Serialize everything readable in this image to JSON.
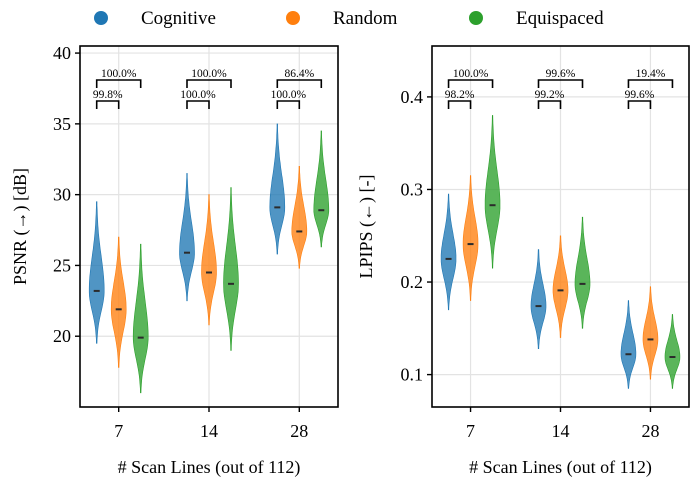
{
  "legend": [
    {
      "name": "Cognitive",
      "color": "#1f77b4"
    },
    {
      "name": "Random",
      "color": "#ff7f0e"
    },
    {
      "name": "Equispaced",
      "color": "#2ca02c"
    }
  ],
  "chart_data": [
    {
      "type": "violin",
      "xlabel": "# Scan Lines (out of 112)",
      "ylabel": "PSNR (→) [dB]",
      "ylim": [
        15,
        40.5
      ],
      "yticks": [
        20,
        25,
        30,
        35,
        40
      ],
      "grid": true,
      "categories": [
        "7",
        "14",
        "28"
      ],
      "series": [
        {
          "name": "Cognitive",
          "medians": [
            23.2,
            25.9,
            29.1
          ],
          "ranges": [
            [
              19.5,
              29.5
            ],
            [
              22.5,
              31.5
            ],
            [
              25.8,
              35.0
            ]
          ]
        },
        {
          "name": "Random",
          "medians": [
            21.9,
            24.5,
            27.4
          ],
          "ranges": [
            [
              17.8,
              27.0
            ],
            [
              20.8,
              30.0
            ],
            [
              24.8,
              32.0
            ]
          ]
        },
        {
          "name": "Equispaced",
          "medians": [
            19.9,
            23.7,
            28.9
          ],
          "ranges": [
            [
              16.0,
              26.5
            ],
            [
              19.0,
              30.5
            ],
            [
              26.3,
              34.5
            ]
          ]
        }
      ],
      "annotations": [
        {
          "category": "7",
          "pair": "Cognitive-Random",
          "text": "99.8%"
        },
        {
          "category": "7",
          "pair": "Cognitive-Equispaced",
          "text": "100.0%"
        },
        {
          "category": "14",
          "pair": "Cognitive-Random",
          "text": "100.0%"
        },
        {
          "category": "14",
          "pair": "Cognitive-Equispaced",
          "text": "100.0%"
        },
        {
          "category": "28",
          "pair": "Cognitive-Random",
          "text": "100.0%"
        },
        {
          "category": "28",
          "pair": "Cognitive-Equispaced",
          "text": "86.4%"
        }
      ]
    },
    {
      "type": "violin",
      "xlabel": "# Scan Lines (out of 112)",
      "ylabel": "LPIPS (←) [-]",
      "ylim": [
        0.065,
        0.455
      ],
      "yticks": [
        0.1,
        0.2,
        0.3,
        0.4
      ],
      "grid": true,
      "categories": [
        "7",
        "14",
        "28"
      ],
      "series": [
        {
          "name": "Cognitive",
          "medians": [
            0.225,
            0.174,
            0.122
          ],
          "ranges": [
            [
              0.17,
              0.295
            ],
            [
              0.128,
              0.235
            ],
            [
              0.085,
              0.18
            ]
          ]
        },
        {
          "name": "Random",
          "medians": [
            0.241,
            0.191,
            0.138
          ],
          "ranges": [
            [
              0.18,
              0.315
            ],
            [
              0.14,
              0.25
            ],
            [
              0.095,
              0.195
            ]
          ]
        },
        {
          "name": "Equispaced",
          "medians": [
            0.283,
            0.198,
            0.119
          ],
          "ranges": [
            [
              0.215,
              0.38
            ],
            [
              0.15,
              0.27
            ],
            [
              0.085,
              0.165
            ]
          ]
        }
      ],
      "annotations": [
        {
          "category": "7",
          "pair": "Cognitive-Random",
          "text": "98.2%"
        },
        {
          "category": "7",
          "pair": "Cognitive-Equispaced",
          "text": "100.0%"
        },
        {
          "category": "14",
          "pair": "Cognitive-Random",
          "text": "99.2%"
        },
        {
          "category": "14",
          "pair": "Cognitive-Equispaced",
          "text": "99.6%"
        },
        {
          "category": "28",
          "pair": "Cognitive-Random",
          "text": "99.6%"
        },
        {
          "category": "28",
          "pair": "Cognitive-Equispaced",
          "text": "19.4%"
        }
      ]
    }
  ]
}
